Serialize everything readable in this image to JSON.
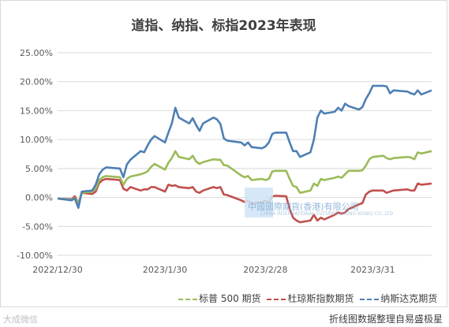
{
  "chart_data": {
    "type": "line",
    "title": "道指、纳指、标指2023年表现",
    "xlabel": "",
    "ylabel": "",
    "x_start": "2022/12/30",
    "x_end": "2023/4/17",
    "x_tick_labels": [
      "2022/12/30",
      "2023/1/30",
      "2023/2/28",
      "2023/3/31"
    ],
    "x_tick_dates": [
      "2022-12-30",
      "2023-01-30",
      "2023-02-28",
      "2023-03-31"
    ],
    "y_ticks": [
      -0.1,
      -0.05,
      0.0,
      0.05,
      0.1,
      0.15,
      0.2,
      0.25
    ],
    "y_tick_labels": [
      "-10.00%",
      "-5.00%",
      "0.00%",
      "5.00%",
      "10.00%",
      "15.00%",
      "20.00%",
      "25.00%"
    ],
    "ylim": [
      -0.1,
      0.25
    ],
    "grid": true,
    "legend_position": "bottom-right",
    "series": [
      {
        "name": "纳斯达克期货",
        "color": "#4e7fb4",
        "x": [
          "2022-12-30",
          "2023-01-03",
          "2023-01-04",
          "2023-01-05",
          "2023-01-06",
          "2023-01-09",
          "2023-01-10",
          "2023-01-11",
          "2023-01-12",
          "2023-01-13",
          "2023-01-17",
          "2023-01-18",
          "2023-01-19",
          "2023-01-20",
          "2023-01-23",
          "2023-01-24",
          "2023-01-25",
          "2023-01-26",
          "2023-01-27",
          "2023-01-30",
          "2023-01-31",
          "2023-02-01",
          "2023-02-02",
          "2023-02-03",
          "2023-02-06",
          "2023-02-07",
          "2023-02-08",
          "2023-02-09",
          "2023-02-10",
          "2023-02-13",
          "2023-02-14",
          "2023-02-15",
          "2023-02-16",
          "2023-02-17",
          "2023-02-21",
          "2023-02-22",
          "2023-02-23",
          "2023-02-24",
          "2023-02-27",
          "2023-02-28",
          "2023-03-01",
          "2023-03-02",
          "2023-03-03",
          "2023-03-06",
          "2023-03-07",
          "2023-03-08",
          "2023-03-09",
          "2023-03-10",
          "2023-03-13",
          "2023-03-14",
          "2023-03-15",
          "2023-03-16",
          "2023-03-17",
          "2023-03-20",
          "2023-03-21",
          "2023-03-22",
          "2023-03-23",
          "2023-03-24",
          "2023-03-27",
          "2023-03-28",
          "2023-03-29",
          "2023-03-30",
          "2023-03-31",
          "2023-04-03",
          "2023-04-04",
          "2023-04-05",
          "2023-04-06",
          "2023-04-10",
          "2023-04-11",
          "2023-04-12",
          "2023-04-13",
          "2023-04-14",
          "2023-04-17"
        ],
        "values": [
          -0.002,
          -0.005,
          -0.002,
          -0.018,
          0.01,
          0.012,
          0.022,
          0.04,
          0.048,
          0.052,
          0.05,
          0.035,
          0.057,
          0.065,
          0.08,
          0.078,
          0.09,
          0.1,
          0.106,
          0.095,
          0.112,
          0.128,
          0.155,
          0.138,
          0.128,
          0.137,
          0.125,
          0.115,
          0.128,
          0.138,
          0.135,
          0.127,
          0.102,
          0.098,
          0.095,
          0.09,
          0.095,
          0.087,
          0.085,
          0.088,
          0.095,
          0.11,
          0.112,
          0.112,
          0.095,
          0.08,
          0.08,
          0.07,
          0.078,
          0.1,
          0.138,
          0.15,
          0.145,
          0.148,
          0.155,
          0.15,
          0.162,
          0.158,
          0.152,
          0.156,
          0.17,
          0.18,
          0.193,
          0.193,
          0.192,
          0.18,
          0.185,
          0.183,
          0.18,
          0.178,
          0.185,
          0.178,
          0.185
        ]
      },
      {
        "name": "标普 500 期货",
        "color": "#9bbb59",
        "x": [
          "2022-12-30",
          "2023-01-03",
          "2023-01-04",
          "2023-01-05",
          "2023-01-06",
          "2023-01-09",
          "2023-01-10",
          "2023-01-11",
          "2023-01-12",
          "2023-01-13",
          "2023-01-17",
          "2023-01-18",
          "2023-01-19",
          "2023-01-20",
          "2023-01-23",
          "2023-01-24",
          "2023-01-25",
          "2023-01-26",
          "2023-01-27",
          "2023-01-30",
          "2023-01-31",
          "2023-02-01",
          "2023-02-02",
          "2023-02-03",
          "2023-02-06",
          "2023-02-07",
          "2023-02-08",
          "2023-02-09",
          "2023-02-10",
          "2023-02-13",
          "2023-02-14",
          "2023-02-15",
          "2023-02-16",
          "2023-02-17",
          "2023-02-21",
          "2023-02-22",
          "2023-02-23",
          "2023-02-24",
          "2023-02-27",
          "2023-02-28",
          "2023-03-01",
          "2023-03-02",
          "2023-03-03",
          "2023-03-06",
          "2023-03-07",
          "2023-03-08",
          "2023-03-09",
          "2023-03-10",
          "2023-03-13",
          "2023-03-14",
          "2023-03-15",
          "2023-03-16",
          "2023-03-17",
          "2023-03-20",
          "2023-03-21",
          "2023-03-22",
          "2023-03-23",
          "2023-03-24",
          "2023-03-27",
          "2023-03-28",
          "2023-03-29",
          "2023-03-30",
          "2023-03-31",
          "2023-04-03",
          "2023-04-04",
          "2023-04-05",
          "2023-04-06",
          "2023-04-10",
          "2023-04-11",
          "2023-04-12",
          "2023-04-13",
          "2023-04-14",
          "2023-04-17"
        ],
        "values": [
          -0.002,
          -0.004,
          -0.001,
          -0.01,
          0.008,
          0.01,
          0.015,
          0.03,
          0.035,
          0.037,
          0.035,
          0.022,
          0.032,
          0.036,
          0.04,
          0.042,
          0.045,
          0.053,
          0.058,
          0.048,
          0.06,
          0.068,
          0.08,
          0.07,
          0.066,
          0.072,
          0.062,
          0.058,
          0.061,
          0.066,
          0.065,
          0.065,
          0.056,
          0.055,
          0.038,
          0.035,
          0.037,
          0.03,
          0.032,
          0.03,
          0.032,
          0.045,
          0.046,
          0.046,
          0.032,
          0.02,
          0.018,
          0.008,
          0.012,
          0.024,
          0.02,
          0.032,
          0.03,
          0.034,
          0.036,
          0.034,
          0.04,
          0.046,
          0.046,
          0.047,
          0.055,
          0.066,
          0.07,
          0.072,
          0.068,
          0.066,
          0.068,
          0.07,
          0.069,
          0.066,
          0.078,
          0.076,
          0.08
        ]
      },
      {
        "name": "杜琼斯指数期货",
        "color": "#c0504d",
        "x": [
          "2022-12-30",
          "2023-01-03",
          "2023-01-04",
          "2023-01-05",
          "2023-01-06",
          "2023-01-09",
          "2023-01-10",
          "2023-01-11",
          "2023-01-12",
          "2023-01-13",
          "2023-01-17",
          "2023-01-18",
          "2023-01-19",
          "2023-01-20",
          "2023-01-23",
          "2023-01-24",
          "2023-01-25",
          "2023-01-26",
          "2023-01-27",
          "2023-01-30",
          "2023-01-31",
          "2023-02-01",
          "2023-02-02",
          "2023-02-03",
          "2023-02-06",
          "2023-02-07",
          "2023-02-08",
          "2023-02-09",
          "2023-02-10",
          "2023-02-13",
          "2023-02-14",
          "2023-02-15",
          "2023-02-16",
          "2023-02-17",
          "2023-02-21",
          "2023-02-22",
          "2023-02-23",
          "2023-02-24",
          "2023-02-27",
          "2023-02-28",
          "2023-03-01",
          "2023-03-02",
          "2023-03-03",
          "2023-03-06",
          "2023-03-07",
          "2023-03-08",
          "2023-03-09",
          "2023-03-10",
          "2023-03-13",
          "2023-03-14",
          "2023-03-15",
          "2023-03-16",
          "2023-03-17",
          "2023-03-20",
          "2023-03-21",
          "2023-03-22",
          "2023-03-23",
          "2023-03-24",
          "2023-03-27",
          "2023-03-28",
          "2023-03-29",
          "2023-03-30",
          "2023-03-31",
          "2023-04-03",
          "2023-04-04",
          "2023-04-05",
          "2023-04-06",
          "2023-04-10",
          "2023-04-11",
          "2023-04-12",
          "2023-04-13",
          "2023-04-14",
          "2023-04-17"
        ],
        "values": [
          -0.002,
          -0.003,
          0.002,
          -0.01,
          0.008,
          0.006,
          0.01,
          0.025,
          0.03,
          0.032,
          0.03,
          0.015,
          0.012,
          0.018,
          0.012,
          0.014,
          0.014,
          0.018,
          0.018,
          0.01,
          0.022,
          0.02,
          0.021,
          0.018,
          0.016,
          0.018,
          0.01,
          0.008,
          0.012,
          0.018,
          0.016,
          0.018,
          0.005,
          0.004,
          -0.005,
          -0.008,
          -0.006,
          -0.01,
          -0.008,
          -0.006,
          -0.008,
          0.002,
          0.003,
          0.002,
          -0.02,
          -0.035,
          -0.04,
          -0.043,
          -0.04,
          -0.03,
          -0.04,
          -0.035,
          -0.038,
          -0.03,
          -0.026,
          -0.028,
          -0.026,
          -0.02,
          -0.012,
          -0.01,
          0.005,
          0.01,
          0.012,
          0.012,
          0.008,
          0.01,
          0.012,
          0.014,
          0.012,
          0.012,
          0.024,
          0.022,
          0.024
        ]
      }
    ]
  },
  "legend": {
    "items": [
      {
        "label": "标普 500 期货",
        "color": "#9bbb59"
      },
      {
        "label": "杜琼斯指数期货",
        "color": "#c0504d"
      },
      {
        "label": "纳斯达克期货",
        "color": "#4e7fb4"
      }
    ]
  },
  "watermark": {
    "text": "中國國際期貨(香港)有限公司",
    "sub": "CHINA INTERNATIONAL FUTURES (HONG KONG) CO.,LTD"
  },
  "source_note": "折线图数据整理自易盛极星",
  "bottom_logo": "大成微信"
}
